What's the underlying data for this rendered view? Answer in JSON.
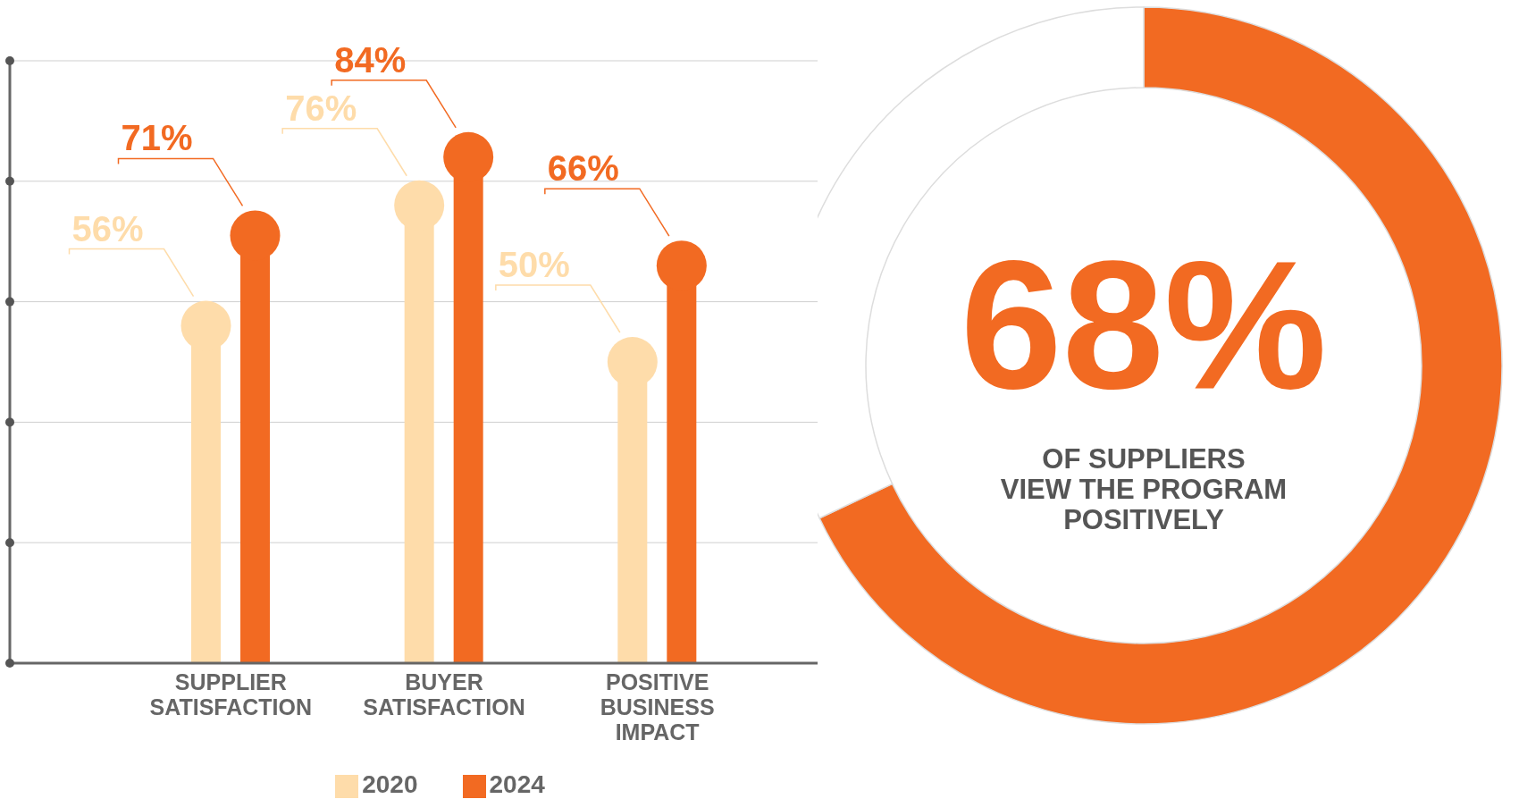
{
  "chart_data": [
    {
      "type": "lollipop",
      "categories": [
        "SUPPLIER SATISFACTION",
        "BUYER SATISFACTION",
        "POSITIVE BUSINESS IMPACT"
      ],
      "series": [
        {
          "name": "2020",
          "color": "#fedcaa",
          "values": [
            56,
            76,
            50
          ],
          "value_labels": [
            "56%",
            "76%",
            "50%"
          ]
        },
        {
          "name": "2024",
          "color": "#f26a22",
          "values": [
            71,
            84,
            66
          ],
          "value_labels": [
            "71%",
            "84%",
            "66%"
          ]
        }
      ],
      "ylim": [
        0,
        100
      ],
      "yticks": [
        {
          "value": 0,
          "label": null
        },
        {
          "value": 20,
          "label": null
        },
        {
          "value": 40,
          "label": null
        },
        {
          "value": 60,
          "label": null
        },
        {
          "value": 80,
          "label": null
        },
        {
          "value": 100,
          "label": null
        }
      ],
      "grid": "y",
      "legend": "bottom",
      "tick_labels": "x"
    },
    {
      "type": "donut",
      "categories": [
        null,
        null
      ],
      "values": [
        68,
        32
      ],
      "colors": [
        "#f26a22",
        "#ffffff"
      ],
      "value_labels": [
        "68%",
        null
      ],
      "annotations": [
        "OF SUPPLIERS VIEW THE PROGRAM POSITIVELY"
      ],
      "legend": false
    }
  ]
}
